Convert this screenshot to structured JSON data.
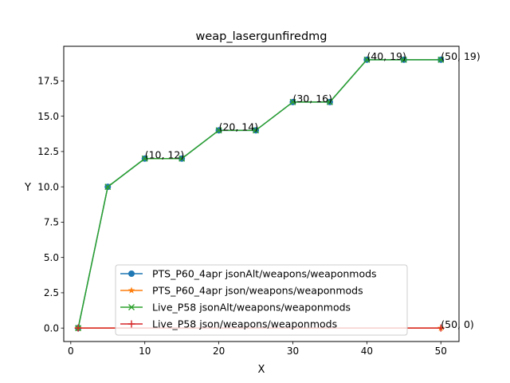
{
  "chart_data": {
    "type": "line",
    "title": "weap_lasergunfiredmg",
    "xlabel": "X",
    "ylabel": "Y",
    "xlim": [
      -0.95,
      52.45
    ],
    "ylim": [
      -0.95,
      19.95
    ],
    "xticks": [
      0,
      10,
      20,
      30,
      40,
      50
    ],
    "xtick_labels": [
      "0",
      "10",
      "20",
      "30",
      "40",
      "50"
    ],
    "yticks": [
      0,
      2.5,
      5,
      7.5,
      10,
      12.5,
      15,
      17.5
    ],
    "ytick_labels": [
      "0.0",
      "2.5",
      "5.0",
      "7.5",
      "10.0",
      "12.5",
      "15.0",
      "17.5"
    ],
    "grid": false,
    "legend_position": "lower-center",
    "series": [
      {
        "name": "PTS_P60_4apr jsonAlt/weapons/weaponmods",
        "color": "#1f77b4",
        "marker": "circle",
        "x": [
          1,
          5,
          10,
          15,
          20,
          25,
          30,
          35,
          40,
          45,
          50
        ],
        "y": [
          0,
          10,
          12,
          12,
          14,
          14,
          16,
          16,
          19,
          19,
          19
        ]
      },
      {
        "name": "PTS_P60_4apr json/weapons/weaponmods",
        "color": "#ff7f0e",
        "marker": "star",
        "x": [
          1,
          50
        ],
        "y": [
          0,
          0
        ]
      },
      {
        "name": "Live_P58 jsonAlt/weapons/weaponmods",
        "color": "#2ca02c",
        "marker": "x",
        "x": [
          1,
          5,
          10,
          15,
          20,
          25,
          30,
          35,
          40,
          45,
          50
        ],
        "y": [
          0,
          10,
          12,
          12,
          14,
          14,
          16,
          16,
          19,
          19,
          19
        ]
      },
      {
        "name": "Live_P58 json/weapons/weaponmods",
        "color": "#d62728",
        "marker": "plus",
        "x": [
          1,
          50
        ],
        "y": [
          0,
          0
        ]
      }
    ],
    "annotations": [
      {
        "x": 10,
        "y": 12,
        "text": "(10, 12)"
      },
      {
        "x": 20,
        "y": 14,
        "text": "(20, 14)"
      },
      {
        "x": 30,
        "y": 16,
        "text": "(30, 16)"
      },
      {
        "x": 40,
        "y": 19,
        "text": "(40, 19)"
      },
      {
        "x": 50,
        "y": 19,
        "text": "(50, 19)"
      },
      {
        "x": 50,
        "y": 0,
        "text": "(50, 0)"
      }
    ]
  }
}
